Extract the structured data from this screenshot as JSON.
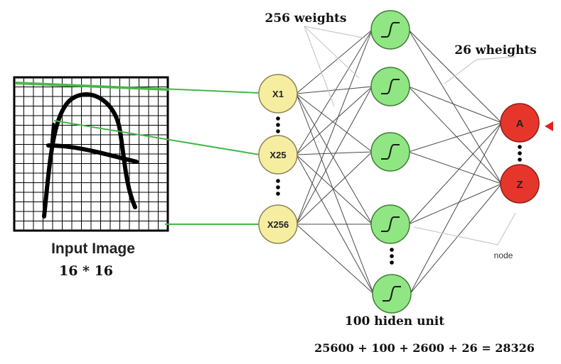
{
  "input": {
    "title": "Input Image",
    "size": "16 * 16",
    "grid_rows": 16,
    "grid_cols": 16
  },
  "input_nodes": [
    "X1",
    "X25",
    "X256"
  ],
  "hidden_label": "100 hiden unit",
  "output_nodes": [
    "A",
    "Z"
  ],
  "labels": {
    "weights_in": "256 weights",
    "weights_out": "26 wheights",
    "node": "node",
    "formula": "25600  + 100  + 2600 + 26 = 28326"
  },
  "colors": {
    "input_node": "#f6eda0",
    "hidden_node": "#90e683",
    "output_node": "#e6362b",
    "link": "#555555",
    "green_line": "#47b648",
    "marker": "#e32020"
  }
}
